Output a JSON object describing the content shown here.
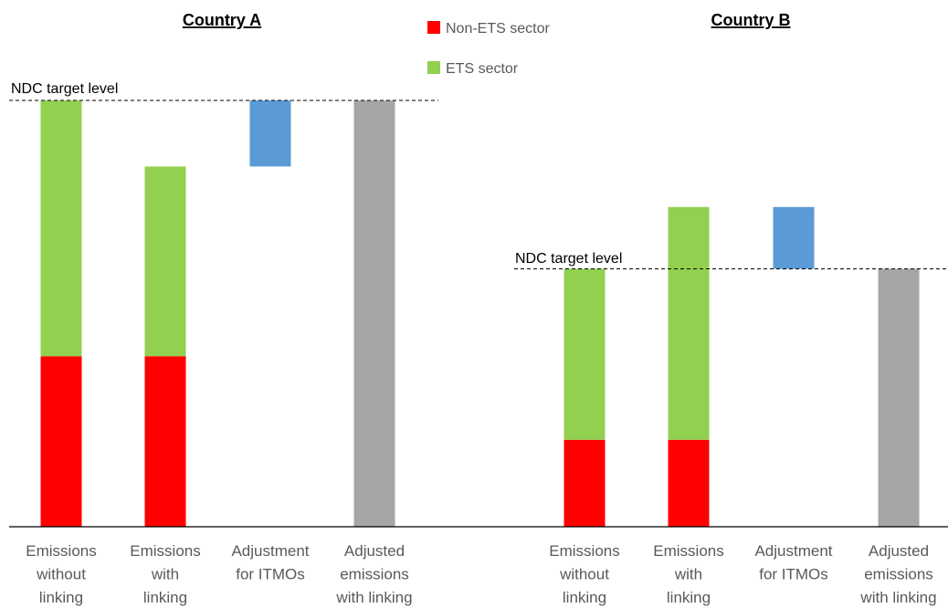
{
  "chart_data": {
    "type": "bar",
    "stacked": true,
    "y_axis_labels_shown": false,
    "ylim": [
      0,
      100
    ],
    "legend": {
      "placement": "top-center",
      "entries": [
        {
          "name": "Non-ETS sector",
          "color": "#ff0000"
        },
        {
          "name": "ETS sector",
          "color": "#92d050"
        }
      ]
    },
    "colors": {
      "non_ets": "#ff0000",
      "ets": "#92d050",
      "itmo": "#5b9bd5",
      "adjusted": "#a6a6a6",
      "axis": "#000000",
      "category_text": "#595959"
    },
    "panels": [
      {
        "title": "Country A",
        "ndc_label": "NDC target level",
        "ndc_value": 100,
        "categories": [
          {
            "lines": [
              "Emissions",
              "without",
              "linking"
            ],
            "segments": [
              {
                "series": "Non-ETS sector",
                "from": 0,
                "to": 40
              },
              {
                "series": "ETS sector",
                "from": 40,
                "to": 100
              }
            ]
          },
          {
            "lines": [
              "Emissions",
              "with",
              "linking"
            ],
            "segments": [
              {
                "series": "Non-ETS sector",
                "from": 0,
                "to": 40
              },
              {
                "series": "ETS sector",
                "from": 40,
                "to": 84.5
              }
            ]
          },
          {
            "lines": [
              "Adjustment",
              "for ITMOs"
            ],
            "segments": [
              {
                "series": "ITMO adjustment",
                "from": 84.5,
                "to": 100
              }
            ]
          },
          {
            "lines": [
              "Adjusted",
              "emissions",
              "with linking"
            ],
            "segments": [
              {
                "series": "Adjusted emissions",
                "from": 0,
                "to": 100
              }
            ]
          }
        ]
      },
      {
        "title": "Country B",
        "ndc_label": "NDC target level",
        "ndc_value": 60.5,
        "categories": [
          {
            "lines": [
              "Emissions",
              "without",
              "linking"
            ],
            "segments": [
              {
                "series": "Non-ETS sector",
                "from": 0,
                "to": 20.4
              },
              {
                "series": "ETS sector",
                "from": 20.4,
                "to": 60.5
              }
            ]
          },
          {
            "lines": [
              "Emissions",
              "with",
              "linking"
            ],
            "segments": [
              {
                "series": "Non-ETS sector",
                "from": 0,
                "to": 20.4
              },
              {
                "series": "ETS sector",
                "from": 20.4,
                "to": 75
              }
            ]
          },
          {
            "lines": [
              "Adjustment",
              "for ITMOs"
            ],
            "segments": [
              {
                "series": "ITMO adjustment",
                "from": 60.5,
                "to": 75
              }
            ]
          },
          {
            "lines": [
              "Adjusted",
              "emissions",
              "with linking"
            ],
            "segments": [
              {
                "series": "Adjusted emissions",
                "from": 0,
                "to": 60.5
              }
            ]
          }
        ]
      }
    ]
  }
}
